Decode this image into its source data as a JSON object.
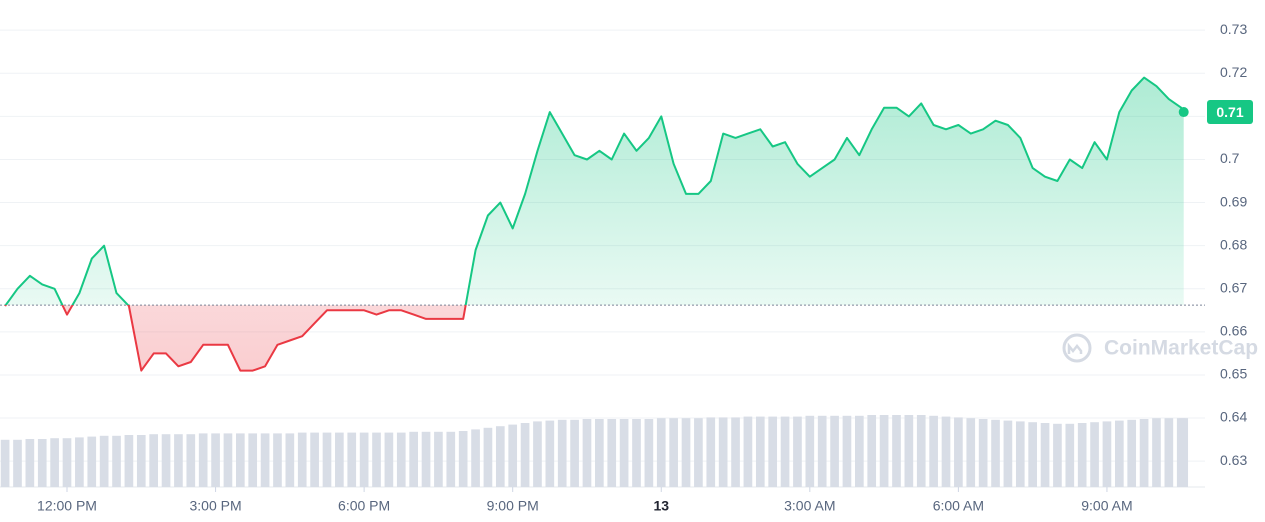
{
  "chart_data": {
    "type": "line",
    "x": [
      -1.25,
      -1,
      -0.75,
      -0.5,
      -0.25,
      0,
      0.25,
      0.5,
      0.75,
      1,
      1.25,
      1.5,
      1.75,
      2,
      2.25,
      2.5,
      2.75,
      3,
      3.25,
      3.5,
      3.75,
      4,
      4.25,
      4.5,
      4.75,
      5,
      5.25,
      5.5,
      5.75,
      6,
      6.25,
      6.5,
      6.75,
      7,
      7.25,
      7.5,
      7.75,
      8,
      8.25,
      8.5,
      8.75,
      9,
      9.25,
      9.5,
      9.75,
      10,
      10.25,
      10.5,
      10.75,
      11,
      11.25,
      11.5,
      11.75,
      12,
      12.25,
      12.5,
      12.75,
      13,
      13.25,
      13.5,
      13.75,
      14,
      14.25,
      14.5,
      14.75,
      15,
      15.25,
      15.5,
      15.75,
      16,
      16.25,
      16.5,
      16.75,
      17,
      17.25,
      17.5,
      17.75,
      18,
      18.25,
      18.5,
      18.75,
      19,
      19.25,
      19.5,
      19.75,
      20,
      20.25,
      20.5,
      20.75,
      21,
      21.25,
      21.5,
      21.75,
      22,
      22.25,
      22.5,
      22.55
    ],
    "series": [
      {
        "name": "Price",
        "values": [
          0.666,
          0.67,
          0.673,
          0.671,
          0.67,
          0.664,
          0.669,
          0.677,
          0.68,
          0.669,
          0.666,
          0.651,
          0.655,
          0.655,
          0.652,
          0.653,
          0.657,
          0.657,
          0.657,
          0.651,
          0.651,
          0.652,
          0.657,
          0.658,
          0.659,
          0.662,
          0.665,
          0.665,
          0.665,
          0.665,
          0.664,
          0.665,
          0.665,
          0.664,
          0.663,
          0.663,
          0.663,
          0.663,
          0.679,
          0.687,
          0.69,
          0.684,
          0.692,
          0.702,
          0.711,
          0.706,
          0.701,
          0.7,
          0.702,
          0.7,
          0.706,
          0.702,
          0.705,
          0.71,
          0.699,
          0.692,
          0.692,
          0.695,
          0.706,
          0.705,
          0.706,
          0.707,
          0.703,
          0.704,
          0.699,
          0.696,
          0.698,
          0.7,
          0.705,
          0.701,
          0.707,
          0.712,
          0.712,
          0.71,
          0.713,
          0.708,
          0.707,
          0.708,
          0.706,
          0.707,
          0.709,
          0.708,
          0.705,
          0.698,
          0.696,
          0.695,
          0.7,
          0.698,
          0.704,
          0.7,
          0.711,
          0.716,
          0.719,
          0.717,
          0.714,
          0.712,
          0.711
        ]
      }
    ],
    "volume": [
      59,
      59,
      60,
      60,
      61,
      61,
      62,
      63,
      64,
      64,
      65,
      65,
      66,
      66,
      66,
      66,
      67,
      67,
      67,
      67,
      67,
      67,
      67,
      67,
      68,
      68,
      68,
      68,
      68,
      68,
      68,
      68,
      68,
      69,
      69,
      69,
      69,
      70,
      72,
      74,
      76,
      78,
      80,
      82,
      83,
      84,
      84,
      85,
      85,
      85,
      85,
      85,
      85,
      86,
      86,
      86,
      86,
      87,
      87,
      87,
      88,
      88,
      88,
      88,
      88,
      89,
      89,
      89,
      89,
      89,
      90,
      90,
      90,
      90,
      90,
      89,
      88,
      87,
      86,
      85,
      84,
      83,
      82,
      81,
      80,
      79,
      79,
      80,
      81,
      82,
      83,
      84,
      85,
      86,
      86,
      86,
      86
    ],
    "baseline": 0.6662,
    "up_color": "#16c784",
    "down_color": "#ea3943",
    "xlim": [
      -1.353,
      22.98
    ],
    "xticks": [
      {
        "value": 0,
        "label": "12:00 PM"
      },
      {
        "value": 3,
        "label": "3:00 PM"
      },
      {
        "value": 6,
        "label": "6:00 PM"
      },
      {
        "value": 9,
        "label": "9:00 PM"
      },
      {
        "value": 12,
        "label": "13"
      },
      {
        "value": 15,
        "label": "3:00 AM"
      },
      {
        "value": 18,
        "label": "6:00 AM"
      },
      {
        "value": 21,
        "label": "9:00 AM"
      }
    ],
    "ylim": [
      0.624,
      0.737
    ],
    "yticks": [
      0.63,
      0.64,
      0.65,
      0.66,
      0.67,
      0.68,
      0.69,
      0.7,
      0.71,
      0.72,
      0.73
    ],
    "last_label": "0.71",
    "watermark": "CoinMarketCap",
    "grid": true
  }
}
